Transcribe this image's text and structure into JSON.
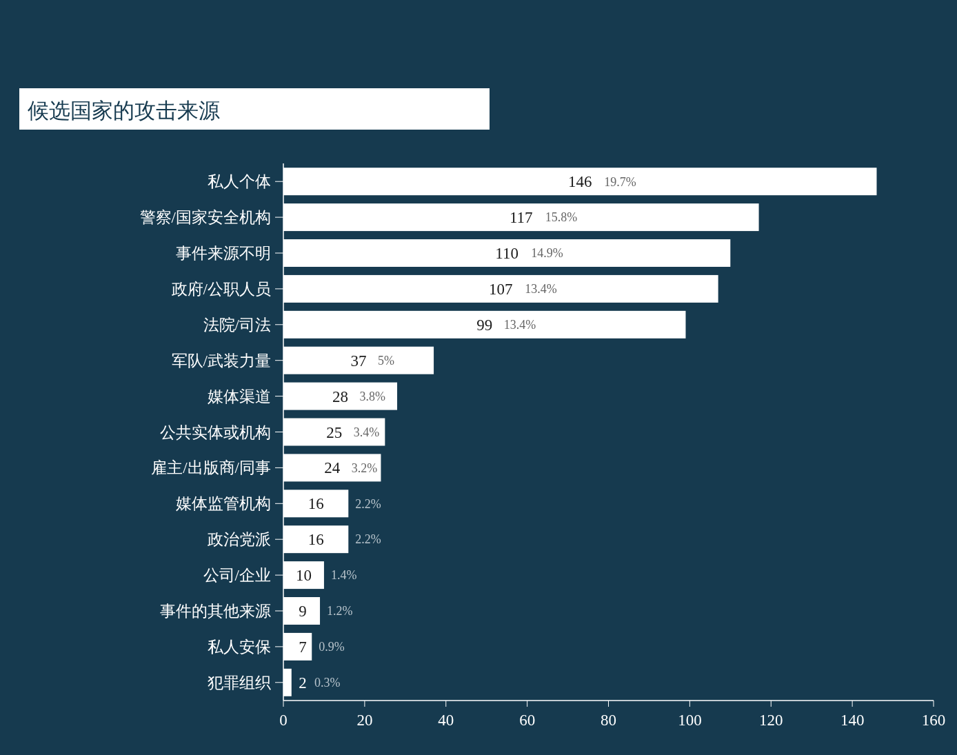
{
  "chart_data": {
    "type": "bar",
    "orientation": "horizontal",
    "title": "候选国家的攻击来源",
    "categories": [
      "私人个体",
      "警察/国家安全机构",
      "事件来源不明",
      "政府/公职人员",
      "法院/司法",
      "军队/武装力量",
      "媒体渠道",
      "公共实体或机构",
      "雇主/出版商/同事",
      "媒体监管机构",
      "政治党派",
      "公司/企业",
      "事件的其他来源",
      "私人安保",
      "犯罪组织"
    ],
    "values": [
      146,
      117,
      110,
      107,
      99,
      37,
      28,
      25,
      24,
      16,
      16,
      10,
      9,
      7,
      2
    ],
    "annotations": [
      "19.7%",
      "15.8%",
      "14.9%",
      "13.4%",
      "13.4%",
      "5%",
      "3.8%",
      "3.4%",
      "3.2%",
      "2.2%",
      "2.2%",
      "1.4%",
      "1.2%",
      "0.9%",
      "0.3%"
    ],
    "data_labels": true,
    "color": "#ffffff",
    "xlim": [
      0,
      160
    ],
    "xticks": [
      0,
      20,
      40,
      60,
      80,
      100,
      120,
      140,
      160
    ],
    "grid": false
  }
}
